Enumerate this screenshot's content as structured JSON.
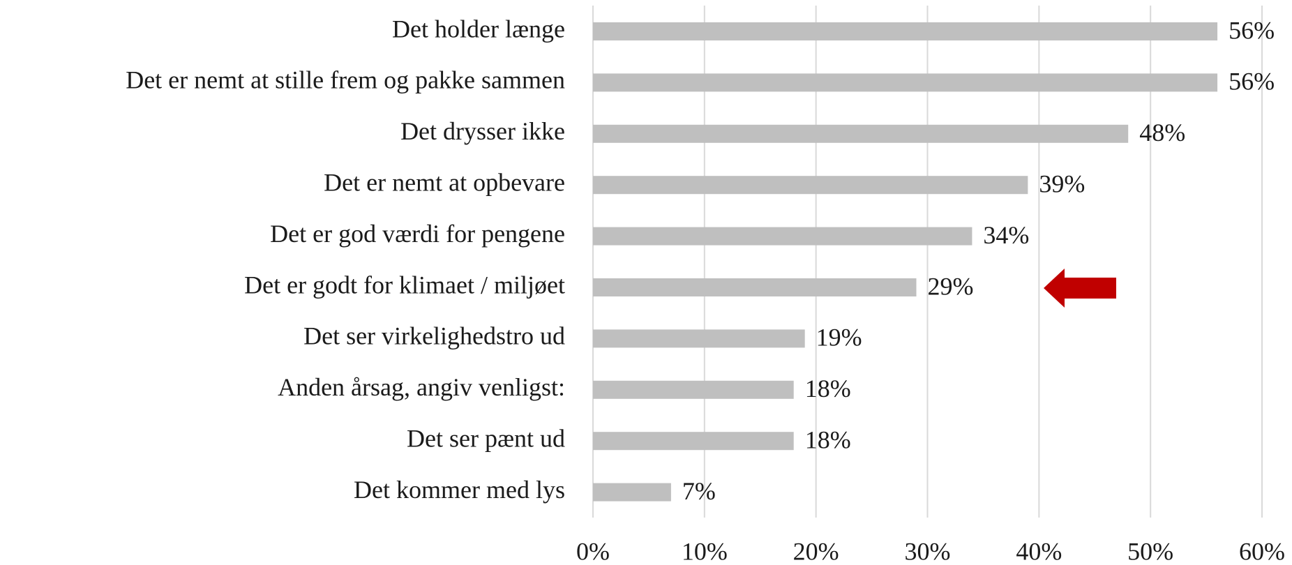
{
  "chart_data": {
    "type": "bar",
    "orientation": "horizontal",
    "categories": [
      "Det holder længe",
      "Det er nemt at stille frem og pakke sammen",
      "Det drysser ikke",
      "Det er nemt at opbevare",
      "Det er god værdi for pengene",
      "Det er godt for klimaet / miljøet",
      "Det ser virkelighedstro ud",
      "Anden årsag, angiv venligst:",
      "Det ser pænt ud",
      "Det kommer med lys"
    ],
    "values": [
      56,
      56,
      48,
      39,
      34,
      29,
      19,
      18,
      18,
      7
    ],
    "value_labels": [
      "56%",
      "56%",
      "48%",
      "39%",
      "34%",
      "29%",
      "19%",
      "18%",
      "18%",
      "7%"
    ],
    "color": "#bfbfbf",
    "xlim": [
      0,
      60
    ],
    "xticks": [
      {
        "value": 0,
        "label": "0%"
      },
      {
        "value": 10,
        "label": "10%"
      },
      {
        "value": 20,
        "label": "20%"
      },
      {
        "value": 30,
        "label": "30%"
      },
      {
        "value": 40,
        "label": "40%"
      },
      {
        "value": 50,
        "label": "50%"
      },
      {
        "value": 60,
        "label": "60%"
      }
    ],
    "grid": true
  }
}
